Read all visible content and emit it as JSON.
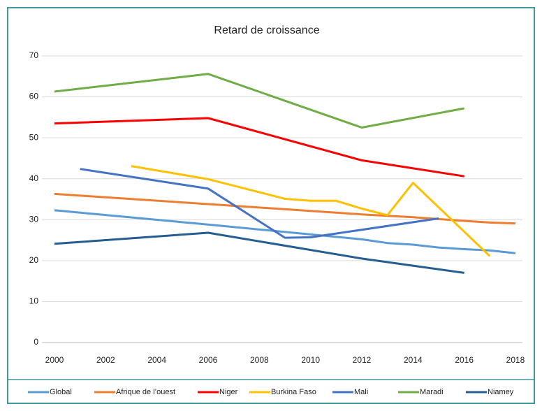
{
  "chart_data": {
    "type": "line",
    "title": "Retard de croissance",
    "xlim": [
      2000,
      2018
    ],
    "xticks": [
      2000,
      2002,
      2004,
      2006,
      2008,
      2010,
      2012,
      2014,
      2016,
      2018
    ],
    "ylim": [
      0,
      70
    ],
    "yticks": [
      0,
      10,
      20,
      30,
      40,
      50,
      60,
      70
    ],
    "grid": true,
    "legend": "bottom",
    "series": [
      {
        "name": "Global",
        "color": "#5b9bd5",
        "x": [
          2000,
          2006,
          2012,
          2013,
          2014,
          2015,
          2016,
          2017,
          2018
        ],
        "values": [
          32.3,
          28.8,
          25.2,
          24.3,
          23.9,
          23.2,
          22.8,
          22.5,
          21.8
        ]
      },
      {
        "name": "Afrique de l’ouest",
        "color": "#ed7d31",
        "x": [
          2000,
          2006,
          2012,
          2014,
          2016,
          2017,
          2018
        ],
        "values": [
          36.3,
          33.8,
          31.3,
          30.6,
          29.7,
          29.3,
          29.1
        ]
      },
      {
        "name": "Niger",
        "color": "#ff0000",
        "x": [
          2000,
          2006,
          2012,
          2016
        ],
        "values": [
          53.5,
          54.8,
          44.5,
          40.6
        ]
      },
      {
        "name": "Burkina Faso",
        "color": "#ffc000",
        "x": [
          2003,
          2006,
          2009,
          2010,
          2011,
          2012,
          2013,
          2014,
          2017
        ],
        "values": [
          43.1,
          39.9,
          35.1,
          34.6,
          34.6,
          32.7,
          31.1,
          39.0,
          21.1
        ]
      },
      {
        "name": "Mali",
        "color": "#4472c4",
        "x": [
          2001,
          2006,
          2009,
          2010,
          2015
        ],
        "values": [
          42.4,
          37.6,
          25.6,
          25.7,
          30.3
        ]
      },
      {
        "name": "Maradi",
        "color": "#70ad47",
        "x": [
          2000,
          2006,
          2012,
          2016
        ],
        "values": [
          61.3,
          65.6,
          52.5,
          57.2
        ]
      },
      {
        "name": "Niamey",
        "color": "#255e91",
        "x": [
          2000,
          2006,
          2012,
          2016
        ],
        "values": [
          24.1,
          26.8,
          20.5,
          17.0
        ]
      }
    ]
  }
}
